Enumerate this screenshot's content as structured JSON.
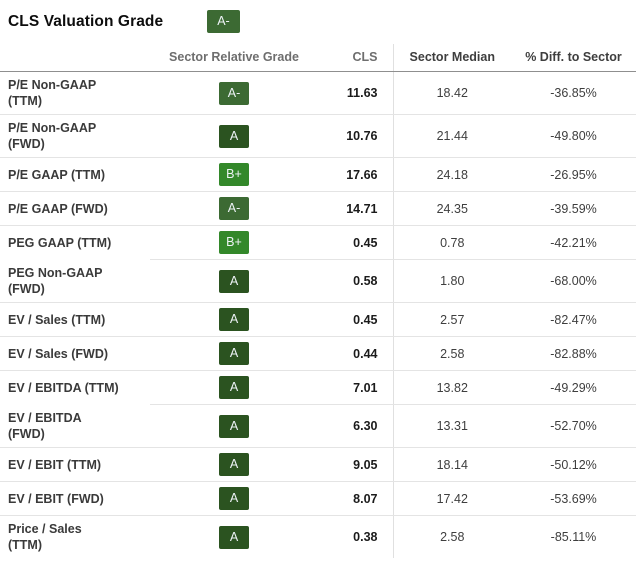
{
  "title": {
    "text": "CLS Valuation Grade",
    "grade": "A-"
  },
  "colors": {
    "grades": {
      "A": "#2b5320",
      "A-": "#3c6a33",
      "B+": "#33882a"
    },
    "badge_text": "#eef3f7"
  },
  "table": {
    "headers": {
      "metric": "",
      "grade": "Sector Relative Grade",
      "cls": "CLS",
      "median": "Sector Median",
      "diff": "% Diff. to Sector"
    },
    "rows": [
      {
        "label": "P/E Non-GAAP\n(TTM)",
        "grade": "A-",
        "cls": "11.63",
        "sector_median": "18.42",
        "diff": "-36.85%"
      },
      {
        "label": "P/E Non-GAAP\n(FWD)",
        "grade": "A",
        "cls": "10.76",
        "sector_median": "21.44",
        "diff": "-49.80%"
      },
      {
        "label": "P/E GAAP (TTM)",
        "grade": "B+",
        "cls": "17.66",
        "sector_median": "24.18",
        "diff": "-26.95%"
      },
      {
        "label": "P/E GAAP (FWD)",
        "grade": "A-",
        "cls": "14.71",
        "sector_median": "24.35",
        "diff": "-39.59%"
      },
      {
        "label": "PEG GAAP (TTM)",
        "grade": "B+",
        "cls": "0.45",
        "sector_median": "0.78",
        "diff": "-42.21%"
      },
      {
        "label": "PEG Non-GAAP\n(FWD)",
        "grade": "A",
        "cls": "0.58",
        "sector_median": "1.80",
        "diff": "-68.00%"
      },
      {
        "label": "EV / Sales (TTM)",
        "grade": "A",
        "cls": "0.45",
        "sector_median": "2.57",
        "diff": "-82.47%"
      },
      {
        "label": "EV / Sales (FWD)",
        "grade": "A",
        "cls": "0.44",
        "sector_median": "2.58",
        "diff": "-82.88%"
      },
      {
        "label": "EV / EBITDA (TTM)",
        "grade": "A",
        "cls": "7.01",
        "sector_median": "13.82",
        "diff": "-49.29%"
      },
      {
        "label": "EV / EBITDA\n(FWD)",
        "grade": "A",
        "cls": "6.30",
        "sector_median": "13.31",
        "diff": "-52.70%"
      },
      {
        "label": "EV / EBIT (TTM)",
        "grade": "A",
        "cls": "9.05",
        "sector_median": "18.14",
        "diff": "-50.12%"
      },
      {
        "label": "EV / EBIT (FWD)",
        "grade": "A",
        "cls": "8.07",
        "sector_median": "17.42",
        "diff": "-53.69%"
      },
      {
        "label": "Price / Sales\n(TTM)",
        "grade": "A",
        "cls": "0.38",
        "sector_median": "2.58",
        "diff": "-85.11%"
      }
    ]
  }
}
